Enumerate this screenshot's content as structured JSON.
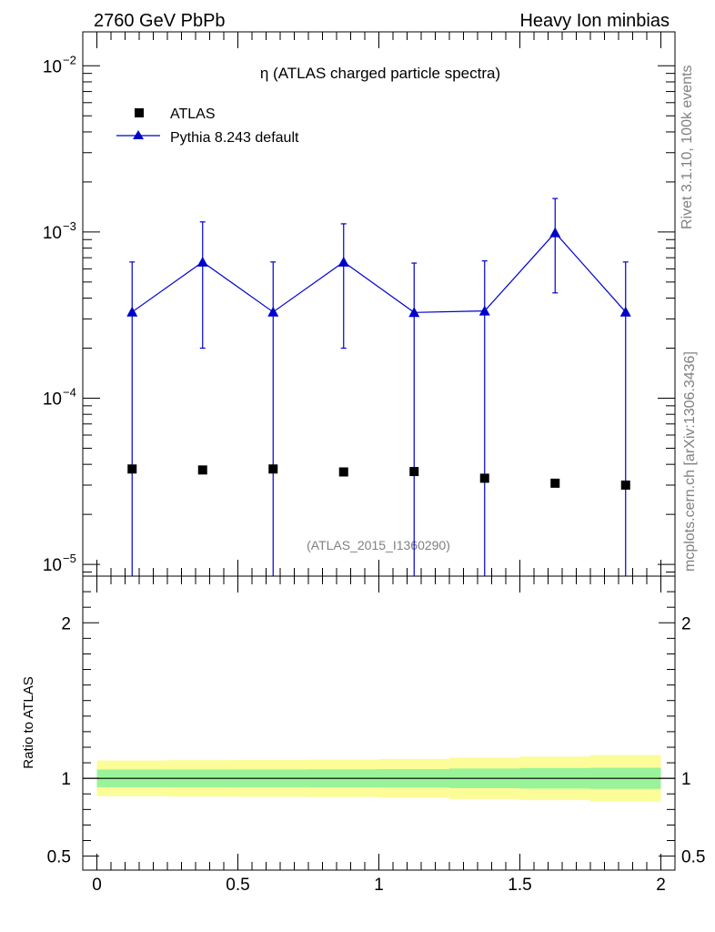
{
  "header": {
    "left": "2760 GeV PbPb",
    "right": "Heavy Ion minbias"
  },
  "side_labels": {
    "rivet": "Rivet 3.1.10,  100k events",
    "mcplots": "mcplots.cern.ch [arXiv:1306.3436]"
  },
  "watermark": "(ATLAS_2015_I1360290)",
  "colors": {
    "atlas": "#000000",
    "pythia": "#0000cc",
    "band_inner": "#99f399",
    "band_outer": "#fcfc99"
  },
  "chart_data": [
    {
      "type": "scatter",
      "title": "η (ATLAS charged particle spectra)",
      "xlim": [
        -0.05,
        2.05
      ],
      "ylim": [
        8.5e-06,
        0.016
      ],
      "log_y": true,
      "y_ticks": [
        {
          "value": 0.01,
          "label": "10",
          "exp": "−2"
        },
        {
          "value": 0.001,
          "label": "10",
          "exp": "−3"
        },
        {
          "value": 0.0001,
          "label": "10",
          "exp": "−4"
        },
        {
          "value": 1e-05,
          "label": "10",
          "exp": "−5"
        }
      ],
      "legend_position": "top-left",
      "series": [
        {
          "name": "ATLAS",
          "marker": "square",
          "x": [
            0.125,
            0.375,
            0.625,
            0.875,
            1.125,
            1.375,
            1.625,
            1.875
          ],
          "y": [
            3.75e-05,
            3.7e-05,
            3.75e-05,
            3.6e-05,
            3.62e-05,
            3.3e-05,
            3.08e-05,
            3e-05
          ]
        },
        {
          "name": "Pythia 8.243 default",
          "marker": "triangle",
          "x": [
            0.125,
            0.375,
            0.625,
            0.875,
            1.125,
            1.375,
            1.625,
            1.875
          ],
          "y": [
            0.00033,
            0.00066,
            0.00033,
            0.00066,
            0.000328,
            0.000335,
            0.00099,
            0.00033
          ],
          "err_up": [
            0.00066,
            0.00115,
            0.00066,
            0.00112,
            0.00065,
            0.00067,
            0.00159,
            0.00066
          ],
          "err_down": [
            1e-06,
            0.0002,
            1e-06,
            0.0002,
            1e-06,
            1e-06,
            0.00043,
            1e-06
          ]
        }
      ]
    },
    {
      "type": "line",
      "ylabel": "Ratio to ATLAS",
      "xlim": [
        -0.05,
        2.05
      ],
      "ylim": [
        0.41,
        2.3
      ],
      "y_ticks": [
        {
          "value": 0.5,
          "label": "0.5"
        },
        {
          "value": 1,
          "label": "1"
        },
        {
          "value": 2,
          "label": "2"
        }
      ],
      "x_ticks": [
        {
          "value": 0,
          "label": "0"
        },
        {
          "value": 0.5,
          "label": "0.5"
        },
        {
          "value": 1,
          "label": "1"
        },
        {
          "value": 1.5,
          "label": "1.5"
        },
        {
          "value": 2,
          "label": "2"
        }
      ],
      "reference_line": 1,
      "bands": {
        "edges": [
          0,
          0.25,
          0.5,
          0.75,
          1.0,
          1.25,
          1.5,
          1.75,
          2.0
        ],
        "inner": [
          0.057,
          0.057,
          0.057,
          0.058,
          0.059,
          0.063,
          0.066,
          0.068
        ],
        "outer": [
          0.115,
          0.117,
          0.118,
          0.12,
          0.125,
          0.133,
          0.14,
          0.15
        ]
      }
    }
  ]
}
